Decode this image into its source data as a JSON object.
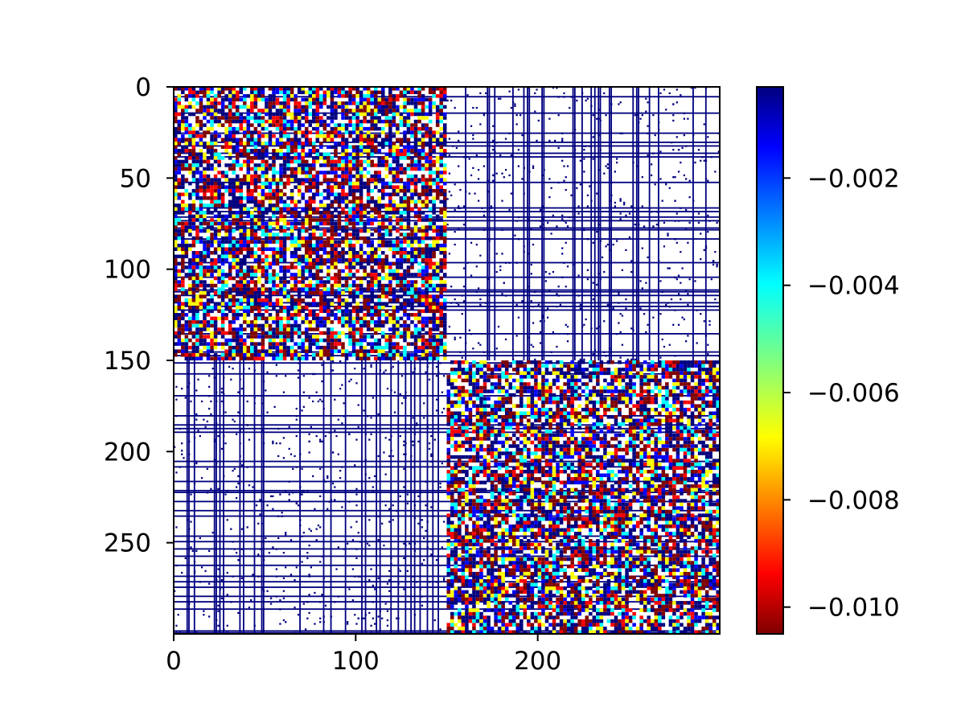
{
  "chart_data": {
    "type": "heatmap",
    "title": "",
    "xlabel": "",
    "ylabel": "",
    "matrix_size": 300,
    "x_range": [
      0,
      300
    ],
    "y_range": [
      0,
      300
    ],
    "y_inverted": true,
    "x_ticks": [
      0,
      100,
      200
    ],
    "x_tick_labels": [
      "0",
      "100",
      "200"
    ],
    "y_ticks": [
      0,
      50,
      100,
      150,
      200,
      250
    ],
    "y_tick_labels": [
      "0",
      "50",
      "100",
      "150",
      "200",
      "250"
    ],
    "blocks": [
      {
        "rows": [
          0,
          150
        ],
        "cols": [
          0,
          150
        ],
        "pattern": "dense-mixed"
      },
      {
        "rows": [
          150,
          300
        ],
        "cols": [
          150,
          300
        ],
        "pattern": "dense-mixed"
      },
      {
        "rows": [
          0,
          150
        ],
        "cols": [
          150,
          300
        ],
        "pattern": "sparse-lines"
      },
      {
        "rows": [
          150,
          300
        ],
        "cols": [
          0,
          150
        ],
        "pattern": "sparse-lines"
      }
    ],
    "colormap": "jet",
    "colorbar": {
      "range": [
        -0.0105,
        -0.0003
      ],
      "ticks": [
        -0.002,
        -0.004,
        -0.006,
        -0.008,
        -0.01
      ],
      "tick_labels": [
        "−0.002",
        "−0.004",
        "−0.006",
        "−0.008",
        "−0.010"
      ],
      "placement": "right",
      "values_above_range": "white"
    },
    "colors": {
      "above_range": "#ffffff",
      "dark_blue": "#00007f",
      "blue": "#0000ff",
      "cyan": "#00ffff",
      "yellow": "#ffff00",
      "red": "#ff0000",
      "dark_red": "#7f0000"
    },
    "grid": false
  }
}
